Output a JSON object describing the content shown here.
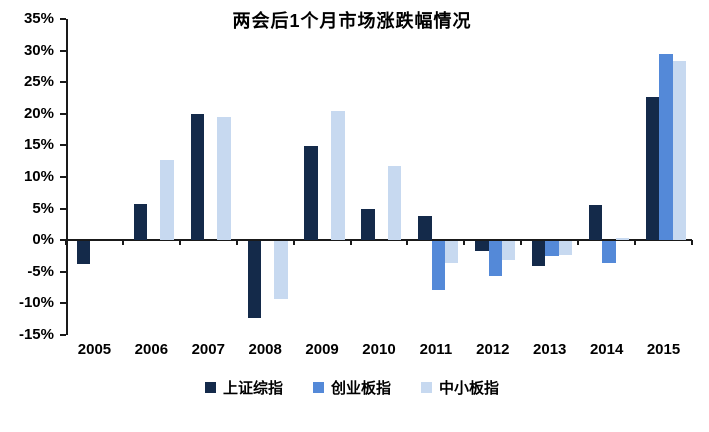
{
  "chart_data": {
    "type": "bar",
    "title": "两会后1个月市场涨跌幅情况",
    "categories": [
      "2005",
      "2006",
      "2007",
      "2008",
      "2009",
      "2010",
      "2011",
      "2012",
      "2013",
      "2014",
      "2015"
    ],
    "series": [
      {
        "name": "上证综指",
        "color": "#142A4A",
        "values": [
          -3.6,
          5.8,
          20.0,
          -12.2,
          14.9,
          5.0,
          3.9,
          -1.5,
          -3.9,
          5.5,
          22.6
        ]
      },
      {
        "name": "创业板指",
        "color": "#5489D8",
        "values": [
          null,
          null,
          null,
          null,
          null,
          null,
          -7.7,
          -5.5,
          -2.4,
          -3.4,
          29.5
        ]
      },
      {
        "name": "中小板指",
        "color": "#C7D9F0",
        "values": [
          null,
          12.7,
          19.5,
          -9.1,
          20.4,
          11.8,
          -3.5,
          -2.9,
          -2.2,
          0.4,
          28.3
        ]
      }
    ],
    "ylim": [
      -15,
      35
    ],
    "ytick_step": 5,
    "ytick_labels": [
      "35%",
      "30%",
      "25%",
      "20%",
      "15%",
      "10%",
      "5%",
      "0%",
      "-5%",
      "-10%",
      "-15%"
    ],
    "xlabel": "",
    "ylabel": "",
    "grid": false,
    "legend_position": "bottom",
    "axis_color": "#1a1a1a",
    "background_color": "#ffffff"
  }
}
